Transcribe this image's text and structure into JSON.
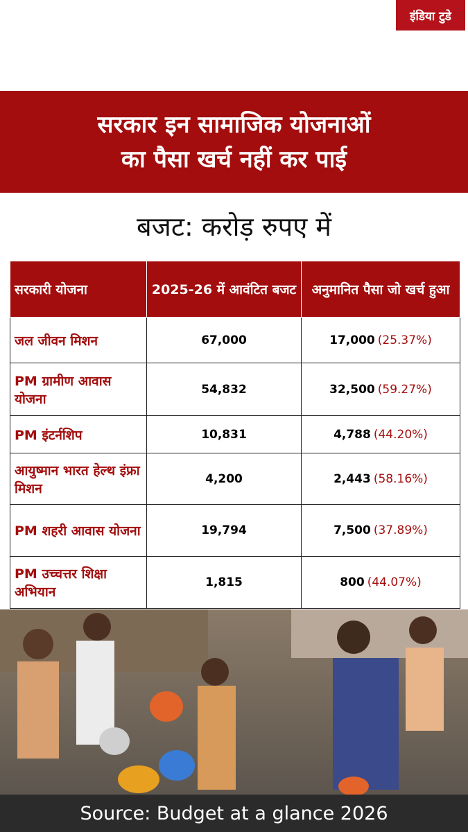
{
  "logo": "इंडिया टुडे",
  "header": {
    "title_line1": "सरकार इन सामाजिक योजनाओं",
    "title_line2": "का पैसा खर्च नहीं कर पाई"
  },
  "subtitle": "बजट: करोड़ रुपए में",
  "table": {
    "columns": [
      "सरकारी योजना",
      "2025-26 में आवंटित बजट",
      "अनुमानित पैसा जो खर्च हुआ"
    ],
    "rows": [
      [
        "जल जीवन मिशन",
        "67,000",
        "17,000",
        "(25.37%)"
      ],
      [
        "PM ग्रामीण आवास योजना",
        "54,832",
        "32,500",
        "(59.27%)"
      ],
      [
        "PM इंटर्नशिप",
        "10,831",
        "4,788",
        "(44.20%)"
      ],
      [
        "आयुष्मान भारत हेल्थ इंफ्रा मिशन",
        "4,200",
        "2,443",
        "(58.16%)"
      ],
      [
        "PM शहरी आवास योजना",
        "19,794",
        "7,500",
        "(37.89%)"
      ],
      [
        "PM उच्चत्तर शिक्षा अभियान",
        "1,815",
        "800",
        "(44.07%)"
      ]
    ]
  },
  "source": "Source: Budget at a glance 2026"
}
